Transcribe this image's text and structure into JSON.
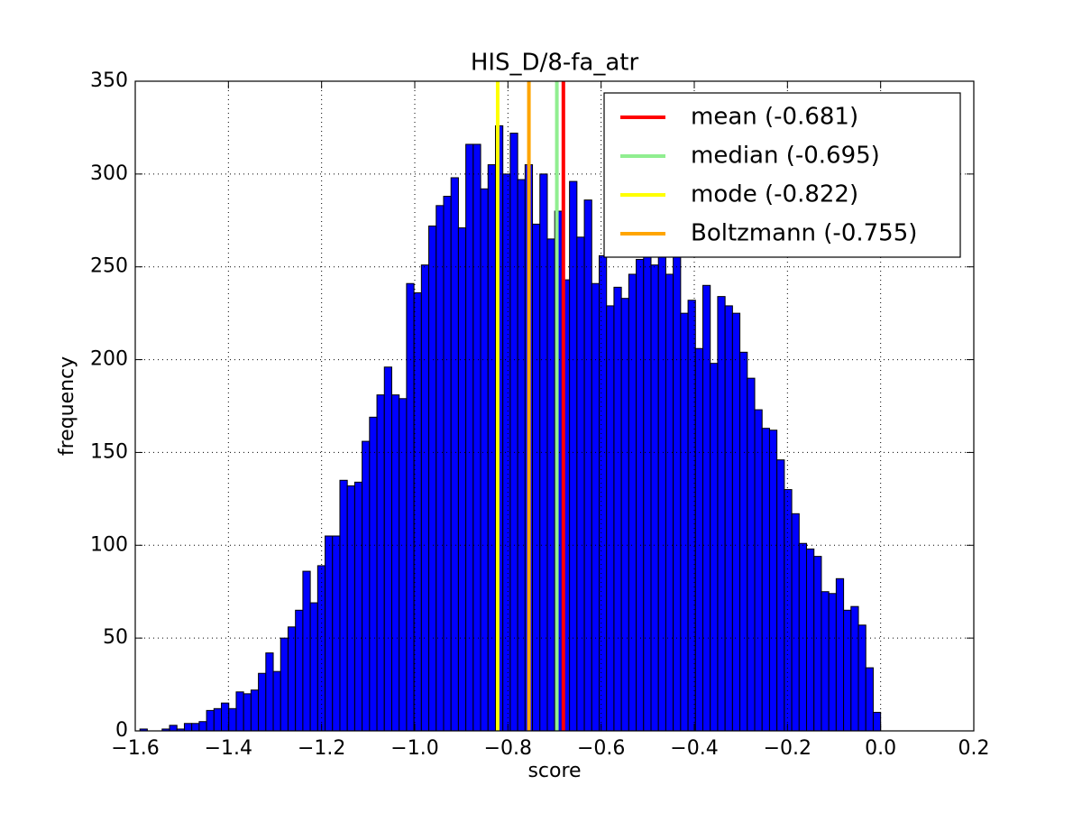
{
  "chart_data": {
    "type": "histogram",
    "title": "HIS_D/8-fa_atr",
    "xlabel": "score",
    "ylabel": "frequency",
    "color": "#0000ff",
    "grid": true,
    "legend": "upper right",
    "bins": [
      -1.59,
      -1.5741,
      -1.5582,
      -1.5423,
      -1.5264,
      -1.5105,
      -1.4946,
      -1.4787,
      -1.4628,
      -1.4469,
      -1.431,
      -1.4151,
      -1.3992,
      -1.3833,
      -1.3674,
      -1.3515,
      -1.3356,
      -1.3197,
      -1.3038,
      -1.2879,
      -1.272,
      -1.2561,
      -1.2402,
      -1.2243,
      -1.2084,
      -1.1925,
      -1.1766,
      -1.1607,
      -1.1448,
      -1.1289,
      -1.113,
      -1.0971,
      -1.0812,
      -1.0653,
      -1.0494,
      -1.0335,
      -1.0176,
      -1.0017,
      -0.9858,
      -0.9699,
      -0.954,
      -0.9381,
      -0.9222,
      -0.9063,
      -0.8904,
      -0.8745,
      -0.8586,
      -0.8427,
      -0.8268,
      -0.8109,
      -0.795,
      -0.7791,
      -0.7632,
      -0.7473,
      -0.7314,
      -0.7155,
      -0.6996,
      -0.6837,
      -0.6678,
      -0.6519,
      -0.636,
      -0.6201,
      -0.6042,
      -0.5883,
      -0.5724,
      -0.5565,
      -0.5406,
      -0.5247,
      -0.5088,
      -0.4929,
      -0.477,
      -0.4611,
      -0.4452,
      -0.4293,
      -0.4134,
      -0.3975,
      -0.3816,
      -0.3657,
      -0.3498,
      -0.3339,
      -0.318,
      -0.3021,
      -0.2862,
      -0.2703,
      -0.2544,
      -0.2385,
      -0.2226,
      -0.2067,
      -0.1908,
      -0.1749,
      -0.159,
      -0.1431,
      -0.1272,
      -0.1113,
      -0.0954,
      -0.0795,
      -0.0636,
      -0.0477,
      -0.0318,
      -0.0159,
      0
    ],
    "values": [
      1,
      0,
      0,
      1,
      3,
      1,
      4,
      4,
      5,
      11,
      12,
      15,
      12,
      21,
      20,
      22,
      31,
      42,
      32,
      50,
      56,
      65,
      86,
      69,
      89,
      105,
      105,
      135,
      132,
      134,
      156,
      169,
      181,
      196,
      181,
      179,
      241,
      236,
      251,
      272,
      283,
      288,
      298,
      271,
      316,
      316,
      292,
      305,
      326,
      300,
      322,
      297,
      305,
      273,
      300,
      265,
      280,
      243,
      296,
      266,
      286,
      241,
      256,
      229,
      239,
      233,
      246,
      254,
      270,
      251,
      265,
      246,
      256,
      225,
      232,
      206,
      240,
      198,
      234,
      229,
      225,
      204,
      190,
      173,
      163,
      162,
      146,
      130,
      117,
      101,
      98,
      94,
      75,
      74,
      82,
      65,
      67,
      57,
      34,
      10
    ],
    "lines": [
      {
        "name": "mean (-0.681)",
        "x": -0.681,
        "color": "#ff0000"
      },
      {
        "name": "median (-0.695)",
        "x": -0.695,
        "color": "#90ee90"
      },
      {
        "name": "mode (-0.822)",
        "x": -0.822,
        "color": "#ffff00"
      },
      {
        "name": "Boltzmann (-0.755)",
        "x": -0.755,
        "color": "#ffa500"
      }
    ],
    "xlim": [
      -1.6,
      0.2
    ],
    "xticks": [
      {
        "value": -1.6,
        "label": "−1.6"
      },
      {
        "value": -1.4,
        "label": "−1.4"
      },
      {
        "value": -1.2,
        "label": "−1.2"
      },
      {
        "value": -1.0,
        "label": "−1.0"
      },
      {
        "value": -0.8,
        "label": "−0.8"
      },
      {
        "value": -0.6,
        "label": "−0.6"
      },
      {
        "value": -0.4,
        "label": "−0.4"
      },
      {
        "value": -0.2,
        "label": "−0.2"
      },
      {
        "value": 0,
        "label": "0.0"
      },
      0.2
    ],
    "ylim": [
      0,
      350
    ],
    "yticks": [
      0,
      50,
      100,
      150,
      200,
      250,
      300,
      350
    ]
  }
}
